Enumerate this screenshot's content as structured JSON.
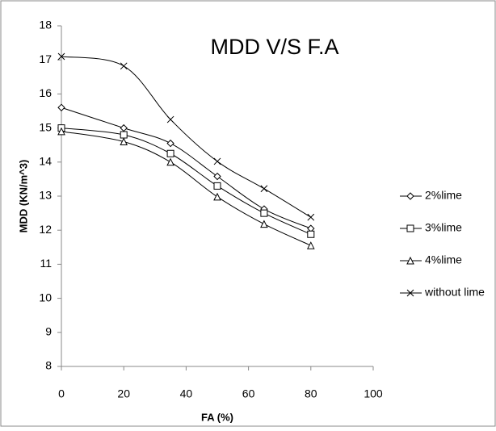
{
  "chart_data": {
    "type": "line",
    "title": "MDD V/S F.A",
    "x_label": "FA (%)",
    "y_label": "MDD (KN/m^3)",
    "x": [
      0,
      20,
      35,
      50,
      65,
      80
    ],
    "xlim": [
      0,
      100
    ],
    "xticks": [
      0,
      20,
      40,
      60,
      80,
      100
    ],
    "ylim": [
      8,
      18
    ],
    "yticks": [
      8,
      9,
      10,
      11,
      12,
      13,
      14,
      15,
      16,
      17,
      18
    ],
    "grid": false,
    "legend": "right",
    "smooth": true,
    "series": [
      {
        "name": "2%lime",
        "color": "#000000",
        "marker": "diamond",
        "values": [
          15.6,
          15.0,
          14.55,
          13.58,
          12.62,
          12.05
        ]
      },
      {
        "name": "3%lime",
        "color": "#000000",
        "marker": "square",
        "values": [
          15.0,
          14.8,
          14.25,
          13.3,
          12.5,
          11.88
        ]
      },
      {
        "name": "4%lime",
        "color": "#000000",
        "marker": "triangle",
        "values": [
          14.9,
          14.6,
          14.0,
          12.98,
          12.18,
          11.55
        ]
      },
      {
        "name": "without lime",
        "color": "#000000",
        "marker": "cross",
        "values": [
          17.1,
          16.82,
          15.25,
          14.02,
          13.22,
          12.38
        ]
      }
    ]
  }
}
